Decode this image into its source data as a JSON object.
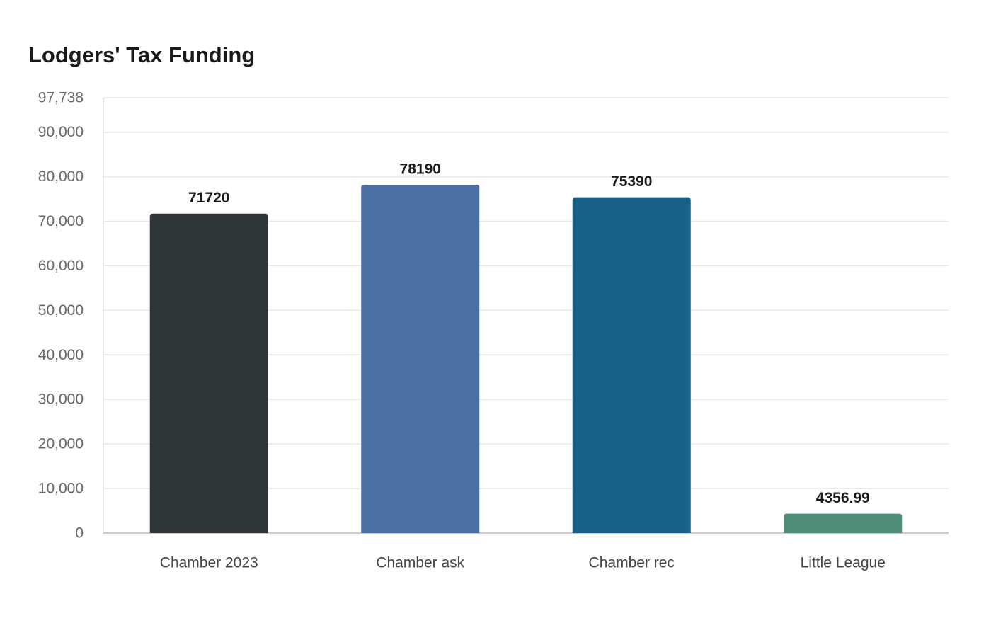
{
  "chart_data": {
    "type": "bar",
    "title": "Lodgers' Tax Funding",
    "xlabel": "",
    "ylabel": "",
    "categories": [
      "Chamber 2023",
      "Chamber ask",
      "Chamber rec",
      "Little League"
    ],
    "values": [
      71720,
      78190,
      75390,
      4356.99
    ],
    "data_labels": [
      "71720",
      "78190",
      "75390",
      "4356.99"
    ],
    "colors": [
      "#2e3537",
      "#4a6fa3",
      "#186187",
      "#4f8d7b"
    ],
    "ylim": [
      0,
      97738
    ],
    "yticks": [
      0,
      10000,
      20000,
      30000,
      40000,
      50000,
      60000,
      70000,
      80000,
      90000,
      97738
    ],
    "ytick_labels": [
      "0",
      "10,000",
      "20,000",
      "30,000",
      "40,000",
      "50,000",
      "60,000",
      "70,000",
      "80,000",
      "90,000",
      "97,738"
    ],
    "grid": true,
    "legend": "none"
  }
}
